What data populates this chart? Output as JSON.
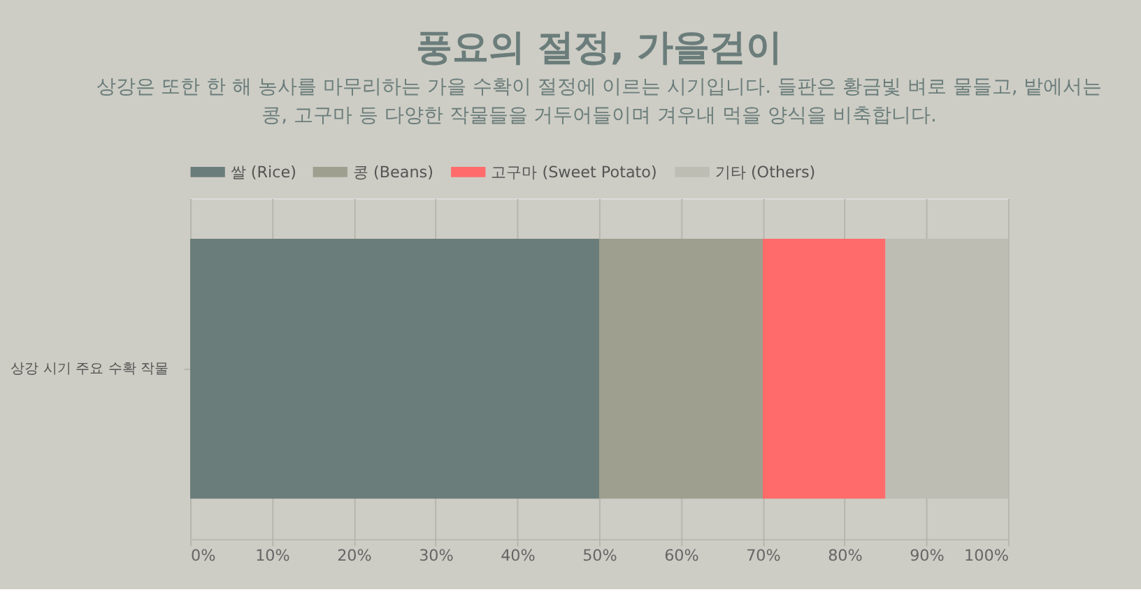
{
  "chart_data": {
    "type": "bar",
    "orientation": "horizontal",
    "stacked": true,
    "title": "풍요의 절정, 가을걷이",
    "subtitle": "상강은 또한 한 해 농사를 마무리하는 가을 수확이 절정에 이르는 시기입니다. 들판은 황금빛 벼로 물들고, 밭에서는 콩, 고구마 등 다양한 작물들을 거두어들이며 겨우내 먹을 양식을 비축합니다.",
    "categories": [
      "상강 시기 주요 수확 작물"
    ],
    "series": [
      {
        "name": "쌀 (Rice)",
        "color": "#6b7d7b",
        "values": [
          50
        ]
      },
      {
        "name": "콩 (Beans)",
        "color": "#9e9f8e",
        "values": [
          20
        ]
      },
      {
        "name": "고구마 (Sweet Potato)",
        "color": "#ff6b6b",
        "values": [
          15
        ]
      },
      {
        "name": "기타 (Others)",
        "color": "#bdbdb3",
        "values": [
          15
        ]
      }
    ],
    "xlim": [
      0,
      100
    ],
    "xticks": [
      {
        "value": 0,
        "label": "0%"
      },
      {
        "value": 10,
        "label": "10%"
      },
      {
        "value": 20,
        "label": "20%"
      },
      {
        "value": 30,
        "label": "30%"
      },
      {
        "value": 40,
        "label": "40%"
      },
      {
        "value": 50,
        "label": "50%"
      },
      {
        "value": 60,
        "label": "60%"
      },
      {
        "value": 70,
        "label": "70%"
      },
      {
        "value": 80,
        "label": "80%"
      },
      {
        "value": 90,
        "label": "90%"
      },
      {
        "value": 100,
        "label": "100%"
      }
    ],
    "grid": "x",
    "legend": "top"
  }
}
